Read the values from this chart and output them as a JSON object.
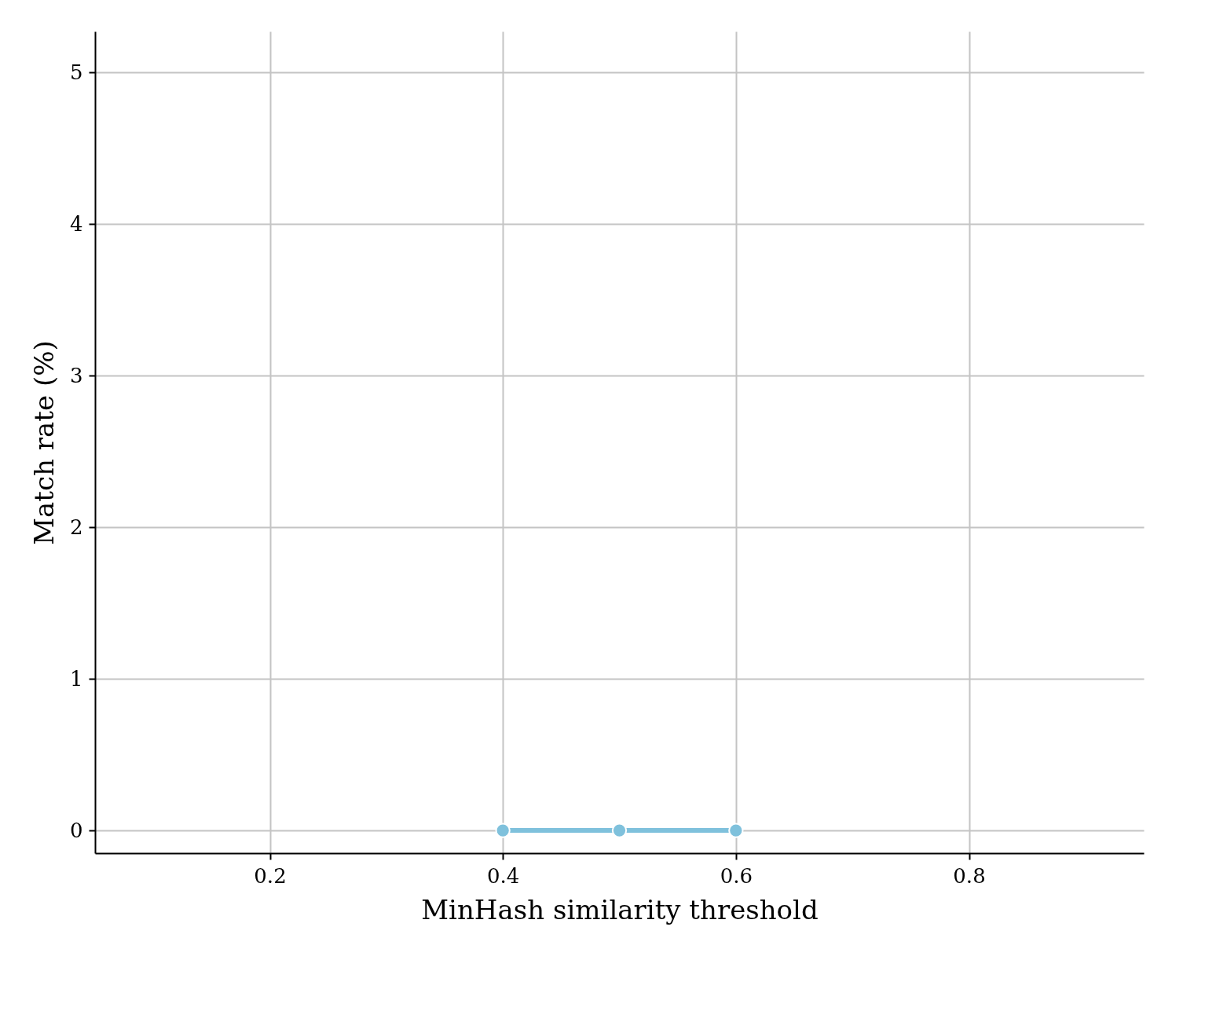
{
  "chart_data": {
    "type": "line",
    "xlabel": "MinHash similarity threshold",
    "ylabel": "Match rate (%)",
    "x": [
      0.4,
      0.5,
      0.6
    ],
    "series": [
      {
        "color": "#7fc1dc",
        "values": [
          0,
          0,
          0
        ]
      }
    ],
    "xlim": [
      0.05,
      0.95
    ],
    "xticks": [
      0.2,
      0.4,
      0.6,
      0.8
    ],
    "ylim": [
      -0.15,
      5.27
    ],
    "yticks": [
      0,
      1,
      2,
      3,
      4,
      5
    ],
    "grid": true,
    "marker": "circle",
    "line_style": "solid"
  }
}
